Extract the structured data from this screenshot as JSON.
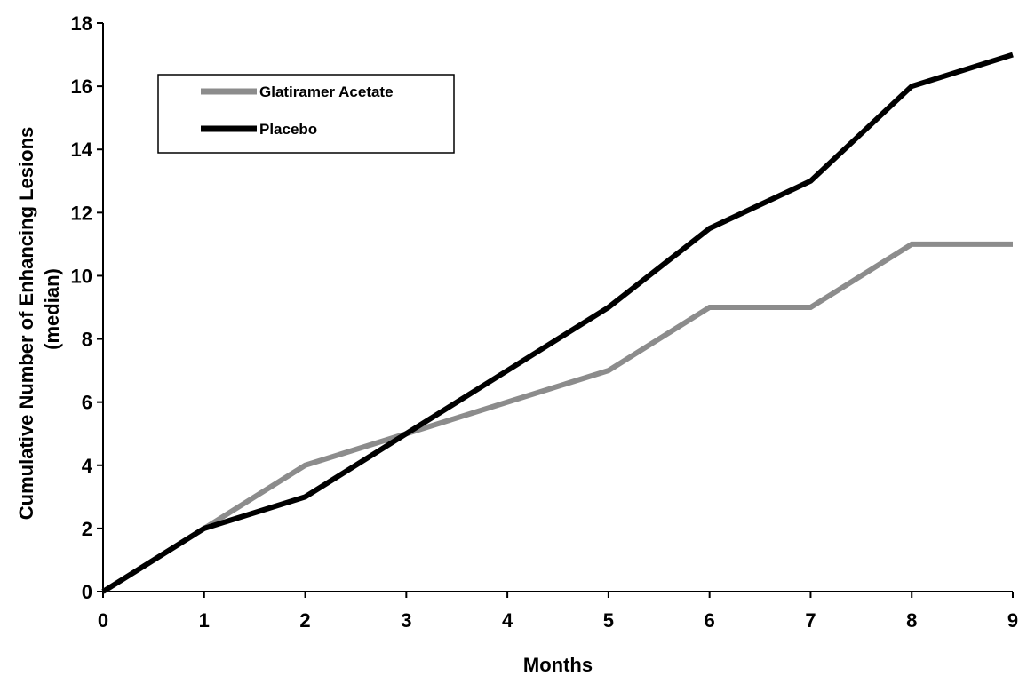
{
  "chart_data": {
    "type": "line",
    "title": "",
    "xlabel": "Months",
    "ylabel": "Cumulative Number of Enhancing Lesions",
    "ylabel_sub": "(median)",
    "x": [
      0,
      1,
      2,
      3,
      4,
      5,
      6,
      7,
      8,
      9
    ],
    "xlim": [
      0,
      9
    ],
    "ylim": [
      0,
      18
    ],
    "xticks": [
      "0",
      "1",
      "2",
      "3",
      "4",
      "5",
      "6",
      "7",
      "8",
      "9"
    ],
    "yticks": [
      "0",
      "2",
      "4",
      "6",
      "8",
      "10",
      "12",
      "14",
      "16",
      "18"
    ],
    "grid": false,
    "legend_position": "top-left",
    "series": [
      {
        "name": "Glatiramer Acetate",
        "color": "#8c8c8c",
        "values": [
          0,
          2,
          4,
          5,
          6,
          7,
          9,
          9,
          11,
          11
        ]
      },
      {
        "name": "Placebo",
        "color": "#000000",
        "values": [
          0,
          2,
          3,
          5,
          7,
          9,
          11.5,
          13,
          16,
          17
        ]
      }
    ]
  }
}
